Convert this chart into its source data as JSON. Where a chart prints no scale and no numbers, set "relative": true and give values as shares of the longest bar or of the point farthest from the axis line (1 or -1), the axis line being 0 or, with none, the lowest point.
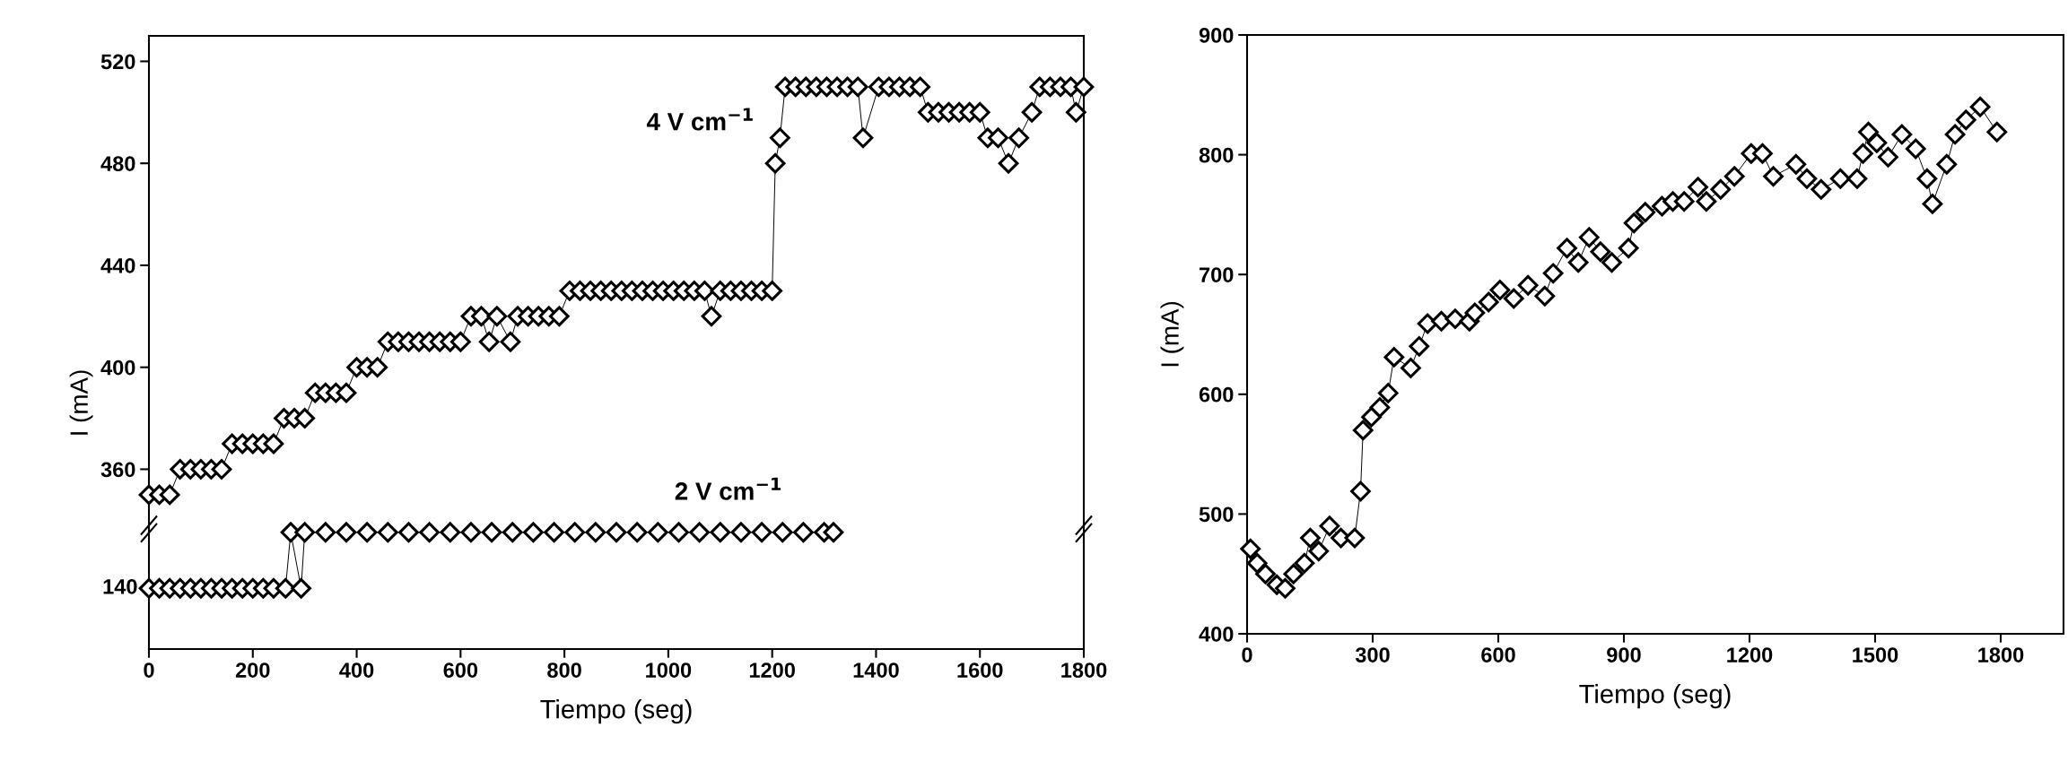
{
  "chart_data": [
    {
      "type": "line",
      "ylabel": "I (mA)",
      "xlim": [
        0,
        1800
      ],
      "xticks": [
        0,
        200,
        400,
        600,
        800,
        1000,
        1200,
        1400,
        1600,
        1800
      ],
      "ylim": [
        338,
        530
      ],
      "yticks": [
        360,
        400,
        440,
        480,
        520
      ],
      "tick_labels": "y",
      "marker": "diamond",
      "line_style": "solid",
      "annotations": [
        "4 V cm$^{−1}$",
        "2 V cm$^{−1}$"
      ],
      "series": [
        {
          "color": "#000000",
          "x": [
            0,
            20,
            40,
            60,
            80,
            100,
            120,
            140,
            160,
            180,
            200,
            220,
            240,
            260,
            280,
            300,
            320,
            340,
            360,
            380,
            400,
            420,
            440,
            460,
            480,
            500,
            520,
            540,
            560,
            580,
            600,
            620,
            640,
            655,
            670,
            696,
            710,
            730,
            750,
            770,
            790,
            810,
            830,
            850,
            870,
            890,
            910,
            930,
            950,
            970,
            990,
            1010,
            1030,
            1050,
            1070,
            1083,
            1100,
            1120,
            1140,
            1160,
            1180,
            1200,
            1206,
            1215,
            1225,
            1245,
            1265,
            1285,
            1305,
            1325,
            1345,
            1365,
            1375,
            1405,
            1425,
            1445,
            1465,
            1485,
            1500,
            1520,
            1540,
            1560,
            1580,
            1600,
            1615,
            1635,
            1655,
            1675,
            1700,
            1715,
            1735,
            1755,
            1775,
            1785,
            1800
          ],
          "values": [
            350,
            350,
            350,
            360,
            360,
            360,
            360,
            360,
            370,
            370,
            370,
            370,
            370,
            380,
            380,
            380,
            390,
            390,
            390,
            390,
            400,
            400,
            400,
            410,
            410,
            410,
            410,
            410,
            410,
            410,
            410,
            420,
            420,
            410,
            420,
            410,
            420,
            420,
            420,
            420,
            420,
            430,
            430,
            430,
            430,
            430,
            430,
            430,
            430,
            430,
            430,
            430,
            430,
            430,
            430,
            420,
            430,
            430,
            430,
            430,
            430,
            430,
            480,
            490,
            510,
            510,
            510,
            510,
            510,
            510,
            510,
            510,
            490,
            510,
            510,
            510,
            510,
            510,
            500,
            500,
            500,
            500,
            500,
            500,
            490,
            490,
            480,
            490,
            500,
            510,
            510,
            510,
            510,
            500,
            510
          ]
        }
      ]
    },
    {
      "type": "line",
      "xlabel": "Tiempo (seg)",
      "xlim": [
        0,
        1800
      ],
      "xticks": [
        0,
        200,
        400,
        600,
        800,
        1000,
        1200,
        1400,
        1600,
        1800
      ],
      "relative": true,
      "marker": "diamond",
      "line_style": "solid",
      "annotations": [
        "140"
      ],
      "series": [
        {
          "color": "#000000",
          "x": [
            0,
            20,
            40,
            60,
            80,
            100,
            120,
            140,
            160,
            180,
            200,
            220,
            240,
            263,
            273,
            293,
            300,
            340,
            380,
            420,
            460,
            500,
            540,
            580,
            620,
            660,
            700,
            740,
            780,
            820,
            860,
            900,
            940,
            980,
            1020,
            1060,
            1100,
            1140,
            1180,
            1220,
            1260,
            1300,
            1318
          ],
          "values": [
            0.52,
            0.52,
            0.52,
            0.52,
            0.52,
            0.52,
            0.52,
            0.52,
            0.52,
            0.52,
            0.52,
            0.52,
            0.52,
            0.52,
            1,
            0.52,
            1,
            1,
            1,
            1,
            1,
            1,
            1,
            1,
            1,
            1,
            1,
            1,
            1,
            1,
            1,
            1,
            1,
            1,
            1,
            1,
            1,
            1,
            1,
            1,
            1,
            1,
            1
          ]
        }
      ]
    },
    {
      "type": "line",
      "xlabel": "Tiempo (seg)",
      "ylabel": "I (mA)",
      "xlim": [
        0,
        1950
      ],
      "xticks": [
        0,
        300,
        600,
        900,
        1200,
        1500,
        1800
      ],
      "ylim": [
        400,
        900
      ],
      "yticks": [
        400,
        500,
        600,
        700,
        800,
        900
      ],
      "marker": "diamond",
      "line_style": "solid",
      "series": [
        {
          "color": "#000000",
          "x": [
            8,
            24,
            44,
            71,
            91,
            111,
            137,
            151,
            171,
            197,
            224,
            257,
            271,
            277,
            297,
            317,
            337,
            351,
            391,
            411,
            431,
            464,
            497,
            531,
            544,
            577,
            604,
            637,
            671,
            711,
            731,
            764,
            791,
            817,
            844,
            871,
            911,
            924,
            951,
            991,
            1017,
            1044,
            1077,
            1097,
            1131,
            1164,
            1204,
            1231,
            1257,
            1311,
            1337,
            1371,
            1417,
            1457,
            1471,
            1484,
            1504,
            1531,
            1564,
            1597,
            1624,
            1637,
            1671,
            1691,
            1717,
            1751,
            1791
          ],
          "values": [
            471,
            459,
            450,
            441,
            438,
            450,
            459,
            480,
            469,
            490,
            480,
            480,
            519,
            570,
            581,
            589,
            601,
            631,
            622,
            640,
            659,
            661,
            663,
            661,
            668,
            677,
            687,
            680,
            691,
            682,
            701,
            722,
            710,
            731,
            719,
            710,
            722,
            743,
            752,
            757,
            761,
            761,
            773,
            761,
            771,
            782,
            801,
            801,
            782,
            792,
            780,
            771,
            780,
            780,
            801,
            819,
            810,
            798,
            817,
            805,
            780,
            759,
            792,
            817,
            829,
            840,
            819
          ]
        }
      ]
    }
  ]
}
